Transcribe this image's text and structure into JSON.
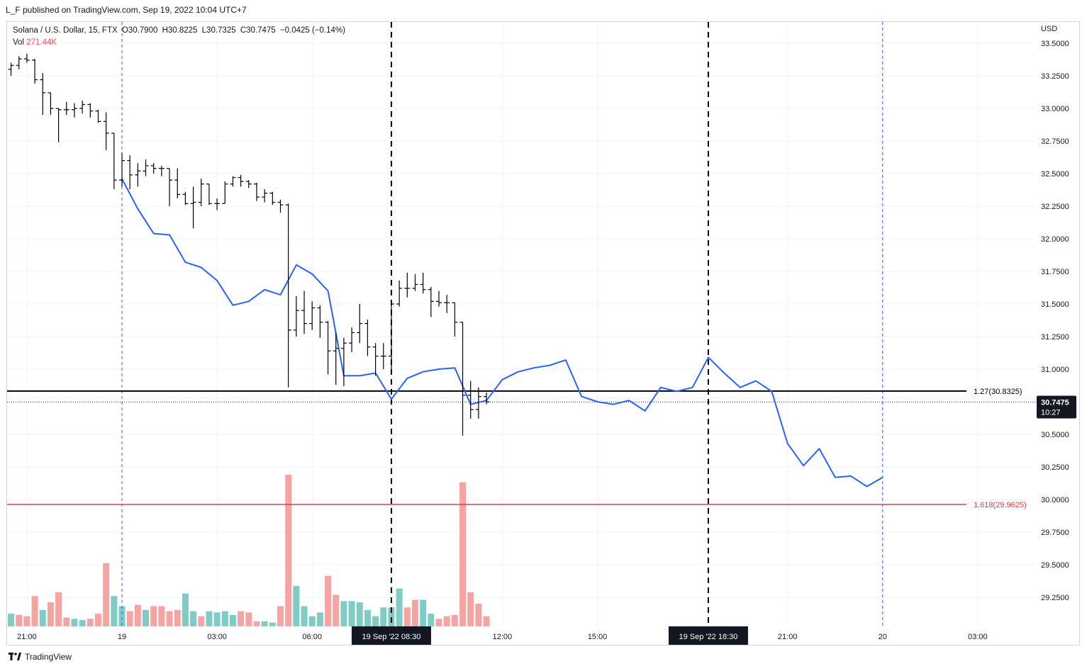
{
  "publisher_line": "L_F published on TradingView.com, Sep 19, 2022 10:04 UTC+7",
  "legend": {
    "symbol": "Solana / U.S. Dollar, 15, FTX",
    "open": "O30.7900",
    "high": "H30.8225",
    "low": "L30.7325",
    "close": "C30.7475",
    "change": "−0.0425 (−0.14%)",
    "vol_label": "Vol",
    "vol_value": "271.44K"
  },
  "footer": {
    "brand": "TradingView"
  },
  "colors": {
    "up_volume": "#80cbc4",
    "down_volume": "#f4a5a3",
    "projection_line": "#2962ff",
    "fib_red": "#f23645",
    "fib_black": "#000000",
    "bars": "#000000"
  },
  "chart_data": {
    "type": "ohlc_bar_with_volume_and_projection",
    "currency_label": "USD",
    "ylim": [
      28.95,
      33.63
    ],
    "y_ticks": [
      "33.5000",
      "33.2500",
      "33.0000",
      "32.7500",
      "32.5000",
      "32.2500",
      "32.0000",
      "31.7500",
      "31.5000",
      "31.2500",
      "31.0000",
      "30.7500",
      "30.5000",
      "30.2500",
      "30.0000",
      "29.7500",
      "29.5000",
      "29.2500"
    ],
    "x_ticks": [
      {
        "label": "21:00",
        "hour": -3
      },
      {
        "label": "19",
        "hour": 0
      },
      {
        "label": "03:00",
        "hour": 3
      },
      {
        "label": "06:00",
        "hour": 6
      },
      {
        "label": "12:00",
        "hour": 12
      },
      {
        "label": "15:00",
        "hour": 15
      },
      {
        "label": "21:00",
        "hour": 21
      },
      {
        "label": "20",
        "hour": 24
      },
      {
        "label": "03:00",
        "hour": 27
      }
    ],
    "x_markers": [
      {
        "label": "19 Sep '22   08:30",
        "hour": 8.5
      },
      {
        "label": "19 Sep '22   18:30",
        "hour": 18.5
      }
    ],
    "price_label": {
      "value": "30.7475",
      "countdown": "10:27"
    },
    "fib_levels": [
      {
        "label": "1.27(30.8325)",
        "value": 30.8325,
        "color": "#000000"
      },
      {
        "label": "1.618(29.9625)",
        "value": 29.9625,
        "color": "#f23645"
      }
    ],
    "ohlc": [
      {
        "t": -3.5,
        "o": 33.3,
        "h": 33.35,
        "l": 33.25,
        "c": 33.33
      },
      {
        "t": -3.25,
        "o": 33.33,
        "h": 33.4,
        "l": 33.3,
        "c": 33.38
      },
      {
        "t": -3.0,
        "o": 33.38,
        "h": 33.42,
        "l": 33.35,
        "c": 33.37
      },
      {
        "t": -2.75,
        "o": 33.37,
        "h": 33.38,
        "l": 33.19,
        "c": 33.22
      },
      {
        "t": -2.5,
        "o": 33.22,
        "h": 33.27,
        "l": 32.95,
        "c": 33.12
      },
      {
        "t": -2.25,
        "o": 33.12,
        "h": 33.12,
        "l": 32.95,
        "c": 33.0
      },
      {
        "t": -2.0,
        "o": 33.0,
        "h": 33.0,
        "l": 32.74,
        "c": 32.99
      },
      {
        "t": -1.75,
        "o": 32.99,
        "h": 33.05,
        "l": 32.95,
        "c": 32.99
      },
      {
        "t": -1.5,
        "o": 32.99,
        "h": 33.04,
        "l": 32.93,
        "c": 33.0
      },
      {
        "t": -1.25,
        "o": 33.0,
        "h": 33.06,
        "l": 32.96,
        "c": 33.03
      },
      {
        "t": -1.0,
        "o": 33.03,
        "h": 33.04,
        "l": 32.93,
        "c": 32.98
      },
      {
        "t": -0.75,
        "o": 32.98,
        "h": 32.99,
        "l": 32.89,
        "c": 32.9
      },
      {
        "t": -0.5,
        "o": 32.9,
        "h": 32.97,
        "l": 32.68,
        "c": 32.81
      },
      {
        "t": -0.25,
        "o": 32.81,
        "h": 32.81,
        "l": 32.38,
        "c": 32.45
      },
      {
        "t": 0.0,
        "o": 32.45,
        "h": 32.66,
        "l": 32.4,
        "c": 32.6
      },
      {
        "t": 0.25,
        "o": 32.6,
        "h": 32.64,
        "l": 32.38,
        "c": 32.49
      },
      {
        "t": 0.5,
        "o": 32.49,
        "h": 32.58,
        "l": 32.4,
        "c": 32.52
      },
      {
        "t": 0.75,
        "o": 32.52,
        "h": 32.61,
        "l": 32.48,
        "c": 32.56
      },
      {
        "t": 1.0,
        "o": 32.56,
        "h": 32.58,
        "l": 32.5,
        "c": 32.54
      },
      {
        "t": 1.25,
        "o": 32.54,
        "h": 32.56,
        "l": 32.48,
        "c": 32.54
      },
      {
        "t": 1.5,
        "o": 32.54,
        "h": 32.54,
        "l": 32.25,
        "c": 32.45
      },
      {
        "t": 1.75,
        "o": 32.45,
        "h": 32.54,
        "l": 32.31,
        "c": 32.34
      },
      {
        "t": 2.0,
        "o": 32.34,
        "h": 32.36,
        "l": 32.26,
        "c": 32.27
      },
      {
        "t": 2.25,
        "o": 32.27,
        "h": 32.4,
        "l": 32.08,
        "c": 32.28
      },
      {
        "t": 2.5,
        "o": 32.28,
        "h": 32.46,
        "l": 32.25,
        "c": 32.42
      },
      {
        "t": 2.75,
        "o": 32.42,
        "h": 32.42,
        "l": 32.26,
        "c": 32.27
      },
      {
        "t": 3.0,
        "o": 32.27,
        "h": 32.31,
        "l": 32.22,
        "c": 32.27
      },
      {
        "t": 3.25,
        "o": 32.27,
        "h": 32.44,
        "l": 32.27,
        "c": 32.42
      },
      {
        "t": 3.5,
        "o": 32.42,
        "h": 32.48,
        "l": 32.4,
        "c": 32.47
      },
      {
        "t": 3.75,
        "o": 32.47,
        "h": 32.49,
        "l": 32.4,
        "c": 32.44
      },
      {
        "t": 4.0,
        "o": 32.44,
        "h": 32.45,
        "l": 32.39,
        "c": 32.42
      },
      {
        "t": 4.25,
        "o": 32.42,
        "h": 32.43,
        "l": 32.29,
        "c": 32.32
      },
      {
        "t": 4.5,
        "o": 32.32,
        "h": 32.38,
        "l": 32.28,
        "c": 32.35
      },
      {
        "t": 4.75,
        "o": 32.35,
        "h": 32.36,
        "l": 32.26,
        "c": 32.28
      },
      {
        "t": 5.0,
        "o": 32.28,
        "h": 32.3,
        "l": 32.2,
        "c": 32.26
      },
      {
        "t": 5.25,
        "o": 32.26,
        "h": 32.27,
        "l": 30.86,
        "c": 31.3
      },
      {
        "t": 5.5,
        "o": 31.3,
        "h": 31.56,
        "l": 31.25,
        "c": 31.45
      },
      {
        "t": 5.75,
        "o": 31.45,
        "h": 31.6,
        "l": 31.27,
        "c": 31.35
      },
      {
        "t": 6.0,
        "o": 31.35,
        "h": 31.52,
        "l": 31.3,
        "c": 31.47
      },
      {
        "t": 6.25,
        "o": 31.47,
        "h": 31.49,
        "l": 31.24,
        "c": 31.36
      },
      {
        "t": 6.5,
        "o": 31.36,
        "h": 31.37,
        "l": 30.96,
        "c": 31.14
      },
      {
        "t": 6.75,
        "o": 31.14,
        "h": 31.28,
        "l": 30.88,
        "c": 31.16
      },
      {
        "t": 7.0,
        "o": 31.16,
        "h": 31.24,
        "l": 30.87,
        "c": 31.2
      },
      {
        "t": 7.25,
        "o": 31.2,
        "h": 31.32,
        "l": 31.13,
        "c": 31.28
      },
      {
        "t": 7.5,
        "o": 31.28,
        "h": 31.5,
        "l": 31.2,
        "c": 31.35
      },
      {
        "t": 7.75,
        "o": 31.35,
        "h": 31.38,
        "l": 31.1,
        "c": 31.17
      },
      {
        "t": 8.0,
        "o": 31.17,
        "h": 31.2,
        "l": 30.95,
        "c": 31.1
      },
      {
        "t": 8.25,
        "o": 31.1,
        "h": 31.2,
        "l": 31.0,
        "c": 31.1
      },
      {
        "t": 8.5,
        "o": 31.1,
        "h": 31.5,
        "l": 31.0,
        "c": 31.5
      },
      {
        "t": 8.75,
        "o": 31.5,
        "h": 31.68,
        "l": 31.48,
        "c": 31.62
      },
      {
        "t": 9.0,
        "o": 31.62,
        "h": 31.74,
        "l": 31.55,
        "c": 31.62
      },
      {
        "t": 9.25,
        "o": 31.62,
        "h": 31.73,
        "l": 31.6,
        "c": 31.65
      },
      {
        "t": 9.5,
        "o": 31.65,
        "h": 31.74,
        "l": 31.58,
        "c": 31.61
      },
      {
        "t": 9.75,
        "o": 31.61,
        "h": 31.63,
        "l": 31.4,
        "c": 31.52
      },
      {
        "t": 10.0,
        "o": 31.52,
        "h": 31.6,
        "l": 31.48,
        "c": 31.51
      },
      {
        "t": 10.25,
        "o": 31.51,
        "h": 31.57,
        "l": 31.43,
        "c": 31.51
      },
      {
        "t": 10.5,
        "o": 31.51,
        "h": 31.51,
        "l": 31.25,
        "c": 31.36
      },
      {
        "t": 10.75,
        "o": 31.36,
        "h": 31.36,
        "l": 30.49,
        "c": 30.8
      },
      {
        "t": 11.0,
        "o": 30.8,
        "h": 30.91,
        "l": 30.62,
        "c": 30.69
      },
      {
        "t": 11.25,
        "o": 30.69,
        "h": 30.86,
        "l": 30.62,
        "c": 30.79
      },
      {
        "t": 11.5,
        "o": 30.79,
        "h": 30.82,
        "l": 30.73,
        "c": 30.75
      }
    ],
    "volume": [
      {
        "t": -3.5,
        "v": 10,
        "up": true
      },
      {
        "t": -3.25,
        "v": 9,
        "up": false
      },
      {
        "t": -3.0,
        "v": 8,
        "up": false
      },
      {
        "t": -2.75,
        "v": 24,
        "up": false
      },
      {
        "t": -2.5,
        "v": 13,
        "up": true
      },
      {
        "t": -2.25,
        "v": 19,
        "up": false
      },
      {
        "t": -2.0,
        "v": 27,
        "up": false
      },
      {
        "t": -1.75,
        "v": 7,
        "up": false
      },
      {
        "t": -1.5,
        "v": 6,
        "up": true
      },
      {
        "t": -1.25,
        "v": 5,
        "up": true
      },
      {
        "t": -1.0,
        "v": 6,
        "up": false
      },
      {
        "t": -0.75,
        "v": 10,
        "up": false
      },
      {
        "t": -0.5,
        "v": 50,
        "up": false
      },
      {
        "t": -0.25,
        "v": 24,
        "up": true
      },
      {
        "t": 0.0,
        "v": 16,
        "up": true
      },
      {
        "t": 0.25,
        "v": 12,
        "up": false
      },
      {
        "t": 0.5,
        "v": 17,
        "up": false
      },
      {
        "t": 0.75,
        "v": 13,
        "up": true
      },
      {
        "t": 1.0,
        "v": 16,
        "up": false
      },
      {
        "t": 1.25,
        "v": 16,
        "up": false
      },
      {
        "t": 1.5,
        "v": 12,
        "up": false
      },
      {
        "t": 1.75,
        "v": 13,
        "up": false
      },
      {
        "t": 2.0,
        "v": 26,
        "up": true
      },
      {
        "t": 2.25,
        "v": 12,
        "up": true
      },
      {
        "t": 2.5,
        "v": 8,
        "up": false
      },
      {
        "t": 2.75,
        "v": 12,
        "up": true
      },
      {
        "t": 3.0,
        "v": 11,
        "up": true
      },
      {
        "t": 3.25,
        "v": 12,
        "up": true
      },
      {
        "t": 3.5,
        "v": 9,
        "up": true
      },
      {
        "t": 3.75,
        "v": 12,
        "up": false
      },
      {
        "t": 4.0,
        "v": 11,
        "up": false
      },
      {
        "t": 4.25,
        "v": 4,
        "up": false
      },
      {
        "t": 4.5,
        "v": 4,
        "up": true
      },
      {
        "t": 4.75,
        "v": 3,
        "up": true
      },
      {
        "t": 5.0,
        "v": 16,
        "up": false
      },
      {
        "t": 5.25,
        "v": 120,
        "up": false
      },
      {
        "t": 5.5,
        "v": 32,
        "up": true
      },
      {
        "t": 5.75,
        "v": 16,
        "up": true
      },
      {
        "t": 6.0,
        "v": 8,
        "up": true
      },
      {
        "t": 6.25,
        "v": 11,
        "up": true
      },
      {
        "t": 6.5,
        "v": 40,
        "up": false
      },
      {
        "t": 6.75,
        "v": 25,
        "up": false
      },
      {
        "t": 7.0,
        "v": 20,
        "up": true
      },
      {
        "t": 7.25,
        "v": 20,
        "up": true
      },
      {
        "t": 7.5,
        "v": 19,
        "up": true
      },
      {
        "t": 7.75,
        "v": 13,
        "up": true
      },
      {
        "t": 8.0,
        "v": 8,
        "up": true
      },
      {
        "t": 8.25,
        "v": 15,
        "up": true
      },
      {
        "t": 8.5,
        "v": 15,
        "up": true
      },
      {
        "t": 8.75,
        "v": 30,
        "up": true
      },
      {
        "t": 9.0,
        "v": 15,
        "up": false
      },
      {
        "t": 9.25,
        "v": 21,
        "up": false
      },
      {
        "t": 9.5,
        "v": 21,
        "up": true
      },
      {
        "t": 9.75,
        "v": 10,
        "up": true
      },
      {
        "t": 10.0,
        "v": 6,
        "up": false
      },
      {
        "t": 10.25,
        "v": 8,
        "up": false
      },
      {
        "t": 10.5,
        "v": 9,
        "up": false
      },
      {
        "t": 10.75,
        "v": 114,
        "up": false
      },
      {
        "t": 11.0,
        "v": 27,
        "up": false
      },
      {
        "t": 11.25,
        "v": 18,
        "up": false
      },
      {
        "t": 11.5,
        "v": 8,
        "up": false
      }
    ],
    "projection": [
      {
        "t": 0.0,
        "p": 32.46
      },
      {
        "t": 0.5,
        "p": 32.23
      },
      {
        "t": 1.0,
        "p": 32.04
      },
      {
        "t": 1.5,
        "p": 32.03
      },
      {
        "t": 2.0,
        "p": 31.82
      },
      {
        "t": 2.5,
        "p": 31.78
      },
      {
        "t": 3.0,
        "p": 31.68
      },
      {
        "t": 3.5,
        "p": 31.49
      },
      {
        "t": 4.0,
        "p": 31.52
      },
      {
        "t": 4.5,
        "p": 31.61
      },
      {
        "t": 5.0,
        "p": 31.57
      },
      {
        "t": 5.5,
        "p": 31.8
      },
      {
        "t": 6.0,
        "p": 31.73
      },
      {
        "t": 6.5,
        "p": 31.6
      },
      {
        "t": 7.0,
        "p": 30.95
      },
      {
        "t": 7.5,
        "p": 30.95
      },
      {
        "t": 8.0,
        "p": 30.97
      },
      {
        "t": 8.5,
        "p": 30.77
      },
      {
        "t": 9.0,
        "p": 30.93
      },
      {
        "t": 9.5,
        "p": 30.98
      },
      {
        "t": 10.0,
        "p": 31.0
      },
      {
        "t": 10.5,
        "p": 31.01
      },
      {
        "t": 11.0,
        "p": 30.73
      },
      {
        "t": 11.5,
        "p": 30.76
      },
      {
        "t": 12.0,
        "p": 30.92
      },
      {
        "t": 12.5,
        "p": 30.98
      },
      {
        "t": 13.0,
        "p": 31.01
      },
      {
        "t": 13.5,
        "p": 31.03
      },
      {
        "t": 14.0,
        "p": 31.07
      },
      {
        "t": 14.5,
        "p": 30.79
      },
      {
        "t": 15.0,
        "p": 30.75
      },
      {
        "t": 15.5,
        "p": 30.73
      },
      {
        "t": 16.0,
        "p": 30.76
      },
      {
        "t": 16.5,
        "p": 30.68
      },
      {
        "t": 17.0,
        "p": 30.86
      },
      {
        "t": 17.5,
        "p": 30.83
      },
      {
        "t": 18.0,
        "p": 30.86
      },
      {
        "t": 18.5,
        "p": 31.09
      },
      {
        "t": 19.0,
        "p": 30.97
      },
      {
        "t": 19.5,
        "p": 30.86
      },
      {
        "t": 20.0,
        "p": 30.91
      },
      {
        "t": 20.5,
        "p": 30.83
      },
      {
        "t": 21.0,
        "p": 30.43
      },
      {
        "t": 21.5,
        "p": 30.26
      },
      {
        "t": 22.0,
        "p": 30.39
      },
      {
        "t": 22.5,
        "p": 30.17
      },
      {
        "t": 23.0,
        "p": 30.18
      },
      {
        "t": 23.5,
        "p": 30.1
      },
      {
        "t": 24.0,
        "p": 30.17
      }
    ],
    "vertical_lines": [
      {
        "hour": 0.0,
        "style": "dashed-blue"
      },
      {
        "hour": 8.5,
        "style": "dashed-black"
      },
      {
        "hour": 18.5,
        "style": "dashed-black"
      },
      {
        "hour": 24.0,
        "style": "dashed-blue"
      }
    ]
  }
}
